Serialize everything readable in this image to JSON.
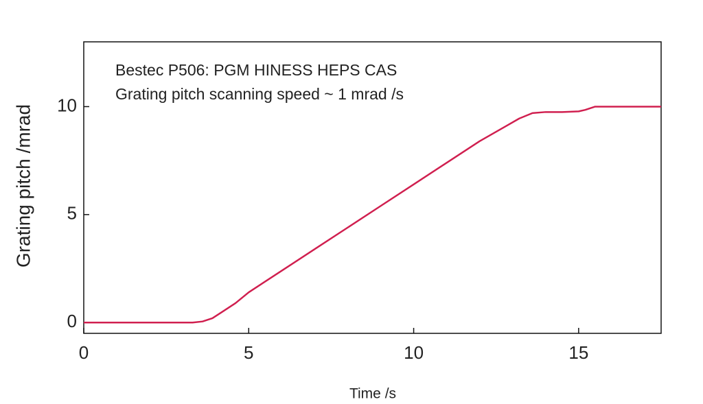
{
  "chart_data": {
    "type": "line",
    "annotations": [
      "Bestec P506: PGM HINESS HEPS CAS",
      "Grating pitch scanning speed ~ 1 mrad /s"
    ],
    "x_label": "Time /s",
    "y_label": "Grating pitch /mrad",
    "x": [
      0,
      3.3,
      3.6,
      3.9,
      4.2,
      4.6,
      5,
      6,
      7,
      8,
      9,
      10,
      11,
      12,
      12.8,
      13.2,
      13.6,
      14,
      14.5,
      15,
      15.2,
      15.5,
      16,
      17.5
    ],
    "series": [
      {
        "color": "#d01f4f",
        "values": [
          0,
          0,
          0.05,
          0.2,
          0.5,
          0.9,
          1.4,
          2.4,
          3.4,
          4.4,
          5.4,
          6.4,
          7.4,
          8.4,
          9.1,
          9.45,
          9.7,
          9.75,
          9.75,
          9.78,
          9.85,
          10,
          10,
          10
        ]
      }
    ],
    "xlim": [
      0,
      17.5
    ],
    "ylim": [
      -0.5,
      13
    ],
    "xticks": [
      0,
      5,
      10,
      15
    ],
    "yticks": [
      0,
      5,
      10
    ]
  }
}
